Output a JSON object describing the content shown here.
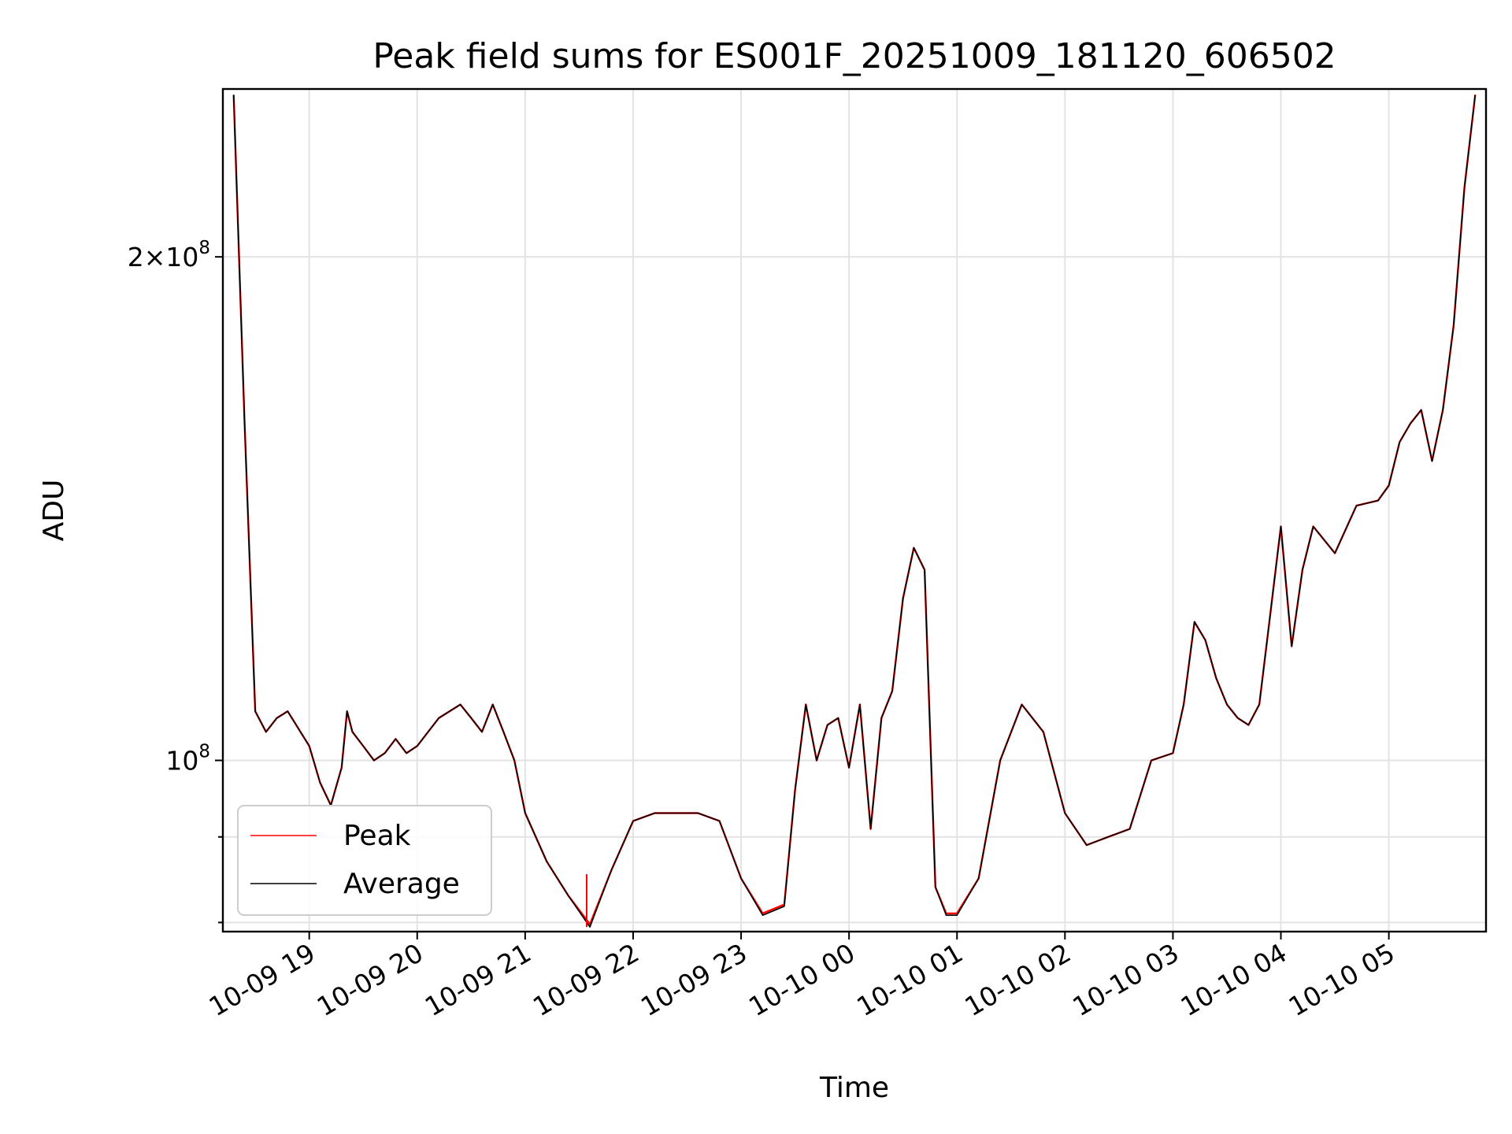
{
  "chart_data": {
    "type": "line",
    "title": "Peak field sums for ES001F_20251009_181120_606502",
    "xlabel": "Time",
    "ylabel": "ADU",
    "yscale": "log",
    "ylim": [
      79000000,
      252000000
    ],
    "xlim": [
      18.2,
      29.9
    ],
    "grid": true,
    "legend_position": "lower-left",
    "x_ticks": [
      {
        "value": 19,
        "label": "10-09 19"
      },
      {
        "value": 20,
        "label": "10-09 20"
      },
      {
        "value": 21,
        "label": "10-09 21"
      },
      {
        "value": 22,
        "label": "10-09 22"
      },
      {
        "value": 23,
        "label": "10-09 23"
      },
      {
        "value": 24,
        "label": "10-10 00"
      },
      {
        "value": 25,
        "label": "10-10 01"
      },
      {
        "value": 26,
        "label": "10-10 02"
      },
      {
        "value": 27,
        "label": "10-10 03"
      },
      {
        "value": 28,
        "label": "10-10 04"
      },
      {
        "value": 29,
        "label": "10-10 05"
      }
    ],
    "y_ticks": [
      {
        "value": 200000000,
        "mantissa": "2",
        "exponent": "8"
      },
      {
        "value": 100000000,
        "mantissa": "",
        "exponent": "8"
      }
    ],
    "y_minor_ticks": [
      80000000,
      90000000
    ],
    "x": [
      18.3,
      18.4,
      18.5,
      18.6,
      18.7,
      18.8,
      19.0,
      19.1,
      19.2,
      19.3,
      19.35,
      19.4,
      19.5,
      19.6,
      19.7,
      19.8,
      19.9,
      20.0,
      20.2,
      20.4,
      20.5,
      20.6,
      20.7,
      20.8,
      20.9,
      21.0,
      21.2,
      21.4,
      21.6,
      21.8,
      22.0,
      22.2,
      22.4,
      22.6,
      22.8,
      23.0,
      23.2,
      23.4,
      23.5,
      23.6,
      23.7,
      23.8,
      23.9,
      24.0,
      24.1,
      24.2,
      24.3,
      24.4,
      24.5,
      24.6,
      24.7,
      24.8,
      24.9,
      25.0,
      25.2,
      25.4,
      25.6,
      25.8,
      26.0,
      26.2,
      26.4,
      26.6,
      26.8,
      27.0,
      27.1,
      27.2,
      27.3,
      27.4,
      27.5,
      27.6,
      27.7,
      27.8,
      27.9,
      28.0,
      28.1,
      28.2,
      28.3,
      28.5,
      28.7,
      28.9,
      29.0,
      29.1,
      29.2,
      29.3,
      29.4,
      29.5,
      29.6,
      29.7,
      29.8
    ],
    "series": [
      {
        "name": "Peak",
        "color": "#ff0000",
        "values": [
          250000000,
          160000000,
          107000000,
          104000000,
          106000000,
          107000000,
          102000000,
          97000000,
          94000000,
          99000000,
          107000000,
          104000000,
          102000000,
          100000000,
          101000000,
          103000000,
          101000000,
          102000000,
          106000000,
          108000000,
          106000000,
          104000000,
          108000000,
          104000000,
          100000000,
          93000000,
          87000000,
          83000000,
          79800000,
          86000000,
          92000000,
          93000000,
          93000000,
          93000000,
          92000000,
          85000000,
          81000000,
          82000000,
          96000000,
          108000000,
          100000000,
          105000000,
          106000000,
          99000000,
          108000000,
          91000000,
          106000000,
          110000000,
          125000000,
          134000000,
          130000000,
          84000000,
          81000000,
          81000000,
          85000000,
          100000000,
          108000000,
          104000000,
          93000000,
          89000000,
          90000000,
          91000000,
          100000000,
          101000000,
          108000000,
          121000000,
          118000000,
          112000000,
          108000000,
          106000000,
          105000000,
          108000000,
          122000000,
          138000000,
          117000000,
          130000000,
          138000000,
          133000000,
          142000000,
          143000000,
          146000000,
          155000000,
          159000000,
          162000000,
          151000000,
          162000000,
          182000000,
          220000000,
          250000000
        ]
      },
      {
        "name": "Average",
        "color": "#000000",
        "values": [
          250000000,
          160000000,
          107000000,
          104000000,
          106000000,
          107000000,
          102000000,
          97000000,
          94000000,
          99000000,
          107000000,
          104000000,
          102000000,
          100000000,
          101000000,
          103000000,
          101000000,
          102000000,
          106000000,
          108000000,
          106000000,
          104000000,
          108000000,
          104000000,
          100000000,
          93000000,
          87000000,
          83000000,
          79500000,
          86000000,
          92000000,
          93000000,
          93000000,
          93000000,
          92000000,
          85000000,
          80800000,
          81800000,
          96000000,
          108000000,
          100000000,
          105000000,
          106000000,
          99000000,
          108000000,
          91000000,
          106000000,
          110000000,
          125000000,
          134000000,
          130000000,
          84000000,
          80800000,
          80800000,
          85000000,
          100000000,
          108000000,
          104000000,
          93000000,
          89000000,
          90000000,
          91000000,
          100000000,
          101000000,
          108000000,
          121000000,
          118000000,
          112000000,
          108000000,
          106000000,
          105000000,
          108000000,
          122000000,
          138000000,
          117000000,
          130000000,
          138000000,
          133000000,
          142000000,
          143000000,
          146000000,
          155000000,
          159000000,
          162000000,
          151000000,
          162000000,
          182000000,
          220000000,
          250000000
        ]
      }
    ],
    "annotations": [
      {
        "type": "vertical-spike",
        "series": "Peak",
        "x": 21.57,
        "from": 79500000,
        "to": 85500000
      }
    ]
  }
}
